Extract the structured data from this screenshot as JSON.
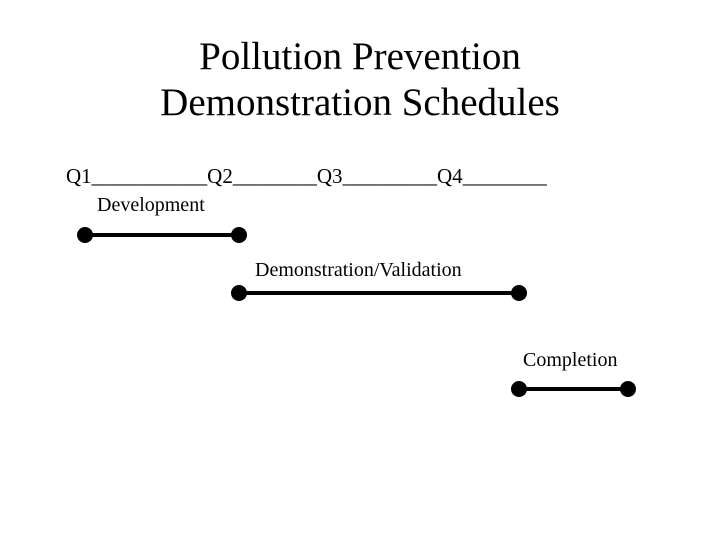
{
  "title": {
    "line1": "Pollution Prevention",
    "line2": "Demonstration Schedules"
  },
  "quarters": {
    "q1": "Q1",
    "sep1": "___________",
    "q2": "Q2",
    "sep2": "________",
    "q3": "Q3",
    "sep3": "_________",
    "q4": "Q4",
    "sep4": "________"
  },
  "phases": [
    {
      "label": "Development",
      "start_quarter": 1,
      "end_quarter": 2
    },
    {
      "label": "Demonstration/Validation",
      "start_quarter": 2,
      "end_quarter": 4
    },
    {
      "label": "Completion",
      "start_quarter": 4,
      "end_quarter": 5
    }
  ],
  "colors": {
    "line": "#000000",
    "background": "#ffffff"
  }
}
